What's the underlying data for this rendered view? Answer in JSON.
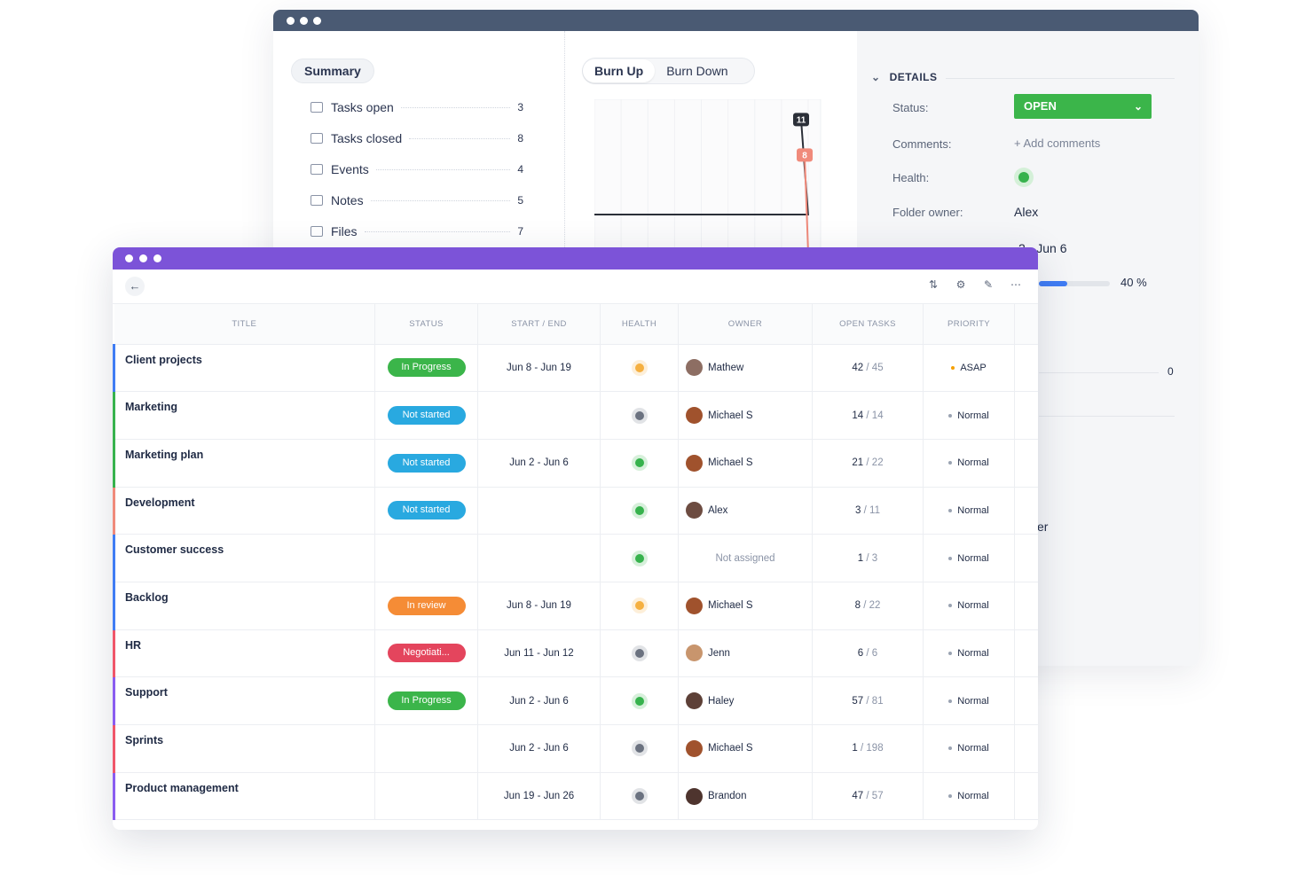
{
  "summary": {
    "tab_label": "Summary",
    "rows": [
      {
        "label": "Tasks open",
        "value": "3",
        "icon": "task-open-icon"
      },
      {
        "label": "Tasks closed",
        "value": "8",
        "icon": "task-closed-icon"
      },
      {
        "label": "Events",
        "value": "4",
        "icon": "calendar-icon"
      },
      {
        "label": "Notes",
        "value": "5",
        "icon": "note-icon"
      },
      {
        "label": "Files",
        "value": "7",
        "icon": "paperclip-icon"
      }
    ]
  },
  "burn": {
    "tabs": [
      "Burn Up",
      "Burn Down"
    ],
    "active_tab": "Burn Up"
  },
  "chart_data": {
    "type": "line",
    "x": [
      0,
      1,
      2,
      3,
      4,
      5,
      6,
      7,
      8
    ],
    "series": [
      {
        "values": [
          3,
          3,
          3,
          3,
          3,
          3,
          3,
          3,
          11
        ],
        "color": "#2b2f38",
        "end_label": "11"
      },
      {
        "values": [
          0,
          0,
          0,
          0,
          0,
          0,
          0,
          0,
          8
        ],
        "color": "#f08a7b",
        "end_label": "8"
      }
    ],
    "ylim": [
      0,
      12
    ],
    "grid": true
  },
  "details": {
    "heading": "DETAILS",
    "status_label": "Status:",
    "status_value": "OPEN",
    "status_color": "#3bb54a",
    "comments_label": "Comments:",
    "comments_action": "+ Add comments",
    "health_label": "Health:",
    "health_color": "#37b24d",
    "owner_label": "Folder owner:",
    "owner_value": "Alex",
    "dates_value": "2 - Jun 6",
    "progress": 40,
    "progress_label": "40 %",
    "zero_value": "0",
    "partial_text": "er"
  },
  "toolbar": {
    "back_icon": "arrow-left-icon",
    "icons": [
      "sort-icon",
      "gear-icon",
      "pencil-icon",
      "more-icon"
    ]
  },
  "table": {
    "columns": [
      "TITLE",
      "STATUS",
      "START / END",
      "HEALTH",
      "OWNER",
      "OPEN TASKS",
      "PRIORITY"
    ],
    "rows": [
      {
        "title": "Client projects",
        "accent": "#3f7cf4",
        "status": "In Progress",
        "status_color": "#3bb54a",
        "dates": "Jun 8 - Jun 19",
        "health": "#f5b041",
        "owner": "Mathew",
        "avatar": "#8d6e63",
        "open": "42",
        "total": "45",
        "priority": "ASAP",
        "priority_color": "#f59f00"
      },
      {
        "title": "Marketing",
        "accent": "#37b24d",
        "status": "Not started",
        "status_color": "#29a9e0",
        "dates": "",
        "health": "#6b7280",
        "owner": "Michael S",
        "avatar": "#a0522d",
        "open": "14",
        "total": "14",
        "priority": "Normal",
        "priority_color": "#9aa3b2"
      },
      {
        "title": "Marketing plan",
        "accent": "#37b24d",
        "status": "Not started",
        "status_color": "#29a9e0",
        "dates": "Jun 2 - Jun 6",
        "health": "#37b24d",
        "owner": "Michael S",
        "avatar": "#a0522d",
        "open": "21",
        "total": "22",
        "priority": "Normal",
        "priority_color": "#9aa3b2"
      },
      {
        "title": "Development",
        "accent": "#f08a7b",
        "status": "Not started",
        "status_color": "#29a9e0",
        "dates": "",
        "health": "#37b24d",
        "owner": "Alex",
        "avatar": "#6d4c41",
        "open": "3",
        "total": "11",
        "priority": "Normal",
        "priority_color": "#9aa3b2"
      },
      {
        "title": "Customer success",
        "accent": "#3f7cf4",
        "status": "",
        "status_color": "",
        "dates": "",
        "health": "#37b24d",
        "owner": "Not assigned",
        "avatar": "",
        "open": "1",
        "total": "3",
        "priority": "Normal",
        "priority_color": "#9aa3b2"
      },
      {
        "title": "Backlog",
        "accent": "#3f7cf4",
        "status": "In review",
        "status_color": "#f58c36",
        "dates": "Jun 8 - Jun 19",
        "health": "#f5b041",
        "owner": "Michael S",
        "avatar": "#a0522d",
        "open": "8",
        "total": "22",
        "priority": "Normal",
        "priority_color": "#9aa3b2"
      },
      {
        "title": "HR",
        "accent": "#f0566a",
        "status": "Negotiati...",
        "status_color": "#e4455d",
        "dates": "Jun 11 - Jun 12",
        "health": "#6b7280",
        "owner": "Jenn",
        "avatar": "#c8956d",
        "open": "6",
        "total": "6",
        "priority": "Normal",
        "priority_color": "#9aa3b2"
      },
      {
        "title": "Support",
        "accent": "#8a5cf0",
        "status": "In Progress",
        "status_color": "#3bb54a",
        "dates": "Jun 2 - Jun 6",
        "health": "#37b24d",
        "owner": "Haley",
        "avatar": "#5d4037",
        "open": "57",
        "total": "81",
        "priority": "Normal",
        "priority_color": "#9aa3b2"
      },
      {
        "title": "Sprints",
        "accent": "#f0566a",
        "status": "",
        "status_color": "",
        "dates": "Jun 2 - Jun 6",
        "health": "#6b7280",
        "owner": "Michael S",
        "avatar": "#a0522d",
        "open": "1",
        "total": "198",
        "priority": "Normal",
        "priority_color": "#9aa3b2"
      },
      {
        "title": "Product management",
        "accent": "#8a5cf0",
        "status": "",
        "status_color": "",
        "dates": "Jun 19 - Jun 26",
        "health": "#6b7280",
        "owner": "Brandon",
        "avatar": "#4e342e",
        "open": "47",
        "total": "57",
        "priority": "Normal",
        "priority_color": "#9aa3b2"
      }
    ]
  }
}
